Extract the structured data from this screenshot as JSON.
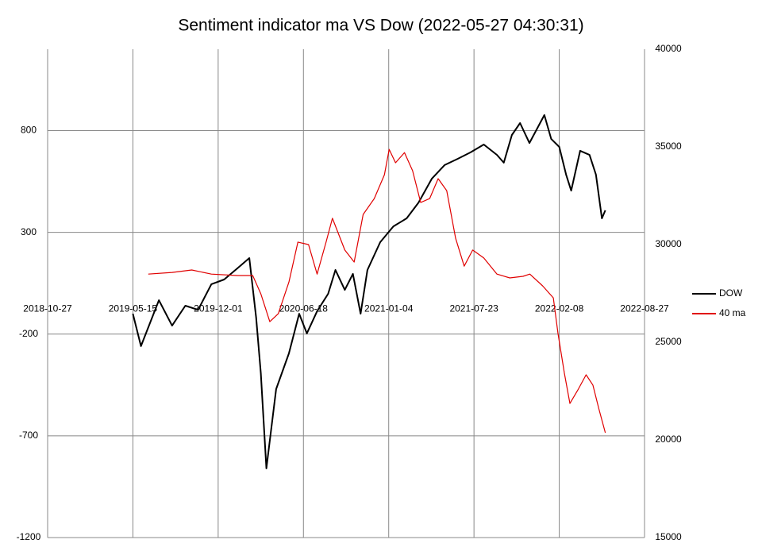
{
  "chart_data": {
    "type": "line",
    "title": "Sentiment indicator ma VS Dow (2022-05-27 04:30:31)",
    "xlim": [
      "2018-10-27",
      "2022-08-27"
    ],
    "xticks": [
      "2018-10-27",
      "2019-05-15",
      "2019-12-01",
      "2020-06-18",
      "2021-01-04",
      "2021-07-23",
      "2022-02-08",
      "2022-08-27"
    ],
    "ylim": [
      -1200,
      1200
    ],
    "yticks": [
      -1200,
      -700,
      -200,
      300,
      800
    ],
    "y2lim": [
      15000,
      40000
    ],
    "y2ticks": [
      15000,
      20000,
      25000,
      30000,
      35000,
      40000
    ],
    "grid": true,
    "legend": "right",
    "series": [
      {
        "name": "DOW",
        "color": "#000000",
        "axis": "y2",
        "x": [
          "2019-05-15",
          "2019-06-03",
          "2019-07-15",
          "2019-08-15",
          "2019-09-15",
          "2019-10-15",
          "2019-11-15",
          "2019-12-15",
          "2020-01-15",
          "2020-02-12",
          "2020-02-28",
          "2020-03-10",
          "2020-03-23",
          "2020-04-15",
          "2020-05-15",
          "2020-06-08",
          "2020-06-26",
          "2020-07-20",
          "2020-08-15",
          "2020-09-01",
          "2020-09-23",
          "2020-10-12",
          "2020-10-30",
          "2020-11-15",
          "2020-12-15",
          "2021-01-15",
          "2021-02-15",
          "2021-03-15",
          "2021-04-15",
          "2021-05-15",
          "2021-06-15",
          "2021-07-15",
          "2021-08-15",
          "2021-09-15",
          "2021-10-01",
          "2021-10-20",
          "2021-11-08",
          "2021-11-30",
          "2021-12-15",
          "2022-01-04",
          "2022-01-20",
          "2022-02-08",
          "2022-02-24",
          "2022-03-08",
          "2022-03-29",
          "2022-04-20",
          "2022-05-05",
          "2022-05-19",
          "2022-05-27"
        ],
        "values": [
          26460,
          24800,
          27150,
          25850,
          26870,
          26660,
          27970,
          28210,
          28780,
          29310,
          26260,
          23410,
          18540,
          22600,
          24430,
          26460,
          25450,
          26590,
          27480,
          28700,
          27680,
          28500,
          26460,
          28700,
          30120,
          30930,
          31340,
          32150,
          33370,
          34070,
          34390,
          34720,
          35120,
          34590,
          34190,
          35610,
          36220,
          35200,
          35810,
          36630,
          35410,
          35000,
          33580,
          32760,
          34800,
          34590,
          33580,
          31340,
          31750
        ]
      },
      {
        "name": "40 ma",
        "color": "#e00000",
        "axis": "y",
        "x": [
          "2019-06-20",
          "2019-08-15",
          "2019-09-30",
          "2019-11-15",
          "2020-01-15",
          "2020-02-20",
          "2020-03-10",
          "2020-03-31",
          "2020-04-20",
          "2020-05-15",
          "2020-06-05",
          "2020-06-30",
          "2020-07-20",
          "2020-08-10",
          "2020-08-25",
          "2020-09-23",
          "2020-10-15",
          "2020-11-05",
          "2020-12-01",
          "2020-12-25",
          "2021-01-05",
          "2021-01-20",
          "2021-02-10",
          "2021-03-01",
          "2021-03-20",
          "2021-04-10",
          "2021-04-30",
          "2021-05-20",
          "2021-06-10",
          "2021-06-30",
          "2021-07-20",
          "2021-08-15",
          "2021-09-15",
          "2021-10-15",
          "2021-11-15",
          "2021-12-01",
          "2021-12-31",
          "2022-01-25",
          "2022-02-05",
          "2022-02-20",
          "2022-03-05",
          "2022-03-25",
          "2022-04-12",
          "2022-04-28",
          "2022-05-12",
          "2022-05-27"
        ],
        "values": [
          95,
          103,
          115,
          95,
          88,
          88,
          -2,
          -139,
          -100,
          56,
          252,
          240,
          95,
          252,
          369,
          213,
          154,
          388,
          466,
          583,
          708,
          642,
          692,
          603,
          447,
          466,
          564,
          505,
          271,
          134,
          213,
          174,
          95,
          76,
          84,
          95,
          37,
          -22,
          -197,
          -392,
          -541,
          -470,
          -400,
          -451,
          -568,
          -685
        ]
      }
    ]
  }
}
